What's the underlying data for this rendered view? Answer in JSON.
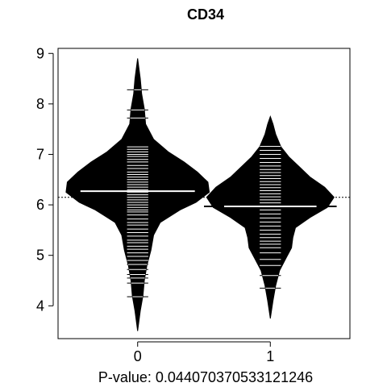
{
  "chart_data": {
    "type": "beanplot",
    "title": "CD34",
    "xlabel": "P-value: 0.044070370533121246",
    "ylabel": "",
    "categories": [
      "0",
      "1"
    ],
    "yticks": [
      4,
      5,
      6,
      7,
      8,
      9
    ],
    "ylim": [
      3.35,
      9.1
    ],
    "xlim": [
      -0.6,
      1.6
    ],
    "overall_mean": 6.15,
    "grid": false,
    "legend": "none",
    "colors": {
      "bean_fill": "#000000",
      "beanline": "#ffffff",
      "mean_line": "#000000"
    },
    "beans": [
      {
        "category": "0",
        "mean": 6.27,
        "density": [
          [
            3.5,
            0.0
          ],
          [
            3.9,
            0.02
          ],
          [
            4.2,
            0.04
          ],
          [
            4.5,
            0.05
          ],
          [
            4.8,
            0.07
          ],
          [
            5.1,
            0.1
          ],
          [
            5.4,
            0.12
          ],
          [
            5.65,
            0.17
          ],
          [
            5.9,
            0.32
          ],
          [
            6.05,
            0.44
          ],
          [
            6.25,
            0.54
          ],
          [
            6.45,
            0.53
          ],
          [
            6.65,
            0.45
          ],
          [
            6.85,
            0.35
          ],
          [
            7.05,
            0.23
          ],
          [
            7.3,
            0.12
          ],
          [
            7.6,
            0.06
          ],
          [
            7.9,
            0.05
          ],
          [
            8.2,
            0.03
          ],
          [
            8.5,
            0.02
          ],
          [
            8.9,
            0.0
          ]
        ],
        "points": [
          4.18,
          4.45,
          4.55,
          4.62,
          4.72,
          4.82,
          4.9,
          4.98,
          5.05,
          5.12,
          5.18,
          5.25,
          5.3,
          5.38,
          5.45,
          5.52,
          5.6,
          5.65,
          5.72,
          5.8,
          5.86,
          5.9,
          5.95,
          6.0,
          6.05,
          6.1,
          6.15,
          6.2,
          6.25,
          6.3,
          6.35,
          6.4,
          6.45,
          6.5,
          6.55,
          6.6,
          6.65,
          6.72,
          6.78,
          6.85,
          6.9,
          6.96,
          7.0,
          7.05,
          7.1,
          7.15,
          7.72,
          7.88,
          8.28
        ]
      },
      {
        "category": "1",
        "mean": 5.97,
        "density": [
          [
            3.75,
            0.0
          ],
          [
            4.1,
            0.02
          ],
          [
            4.4,
            0.04
          ],
          [
            4.7,
            0.07
          ],
          [
            4.95,
            0.12
          ],
          [
            5.15,
            0.16
          ],
          [
            5.35,
            0.17
          ],
          [
            5.55,
            0.19
          ],
          [
            5.75,
            0.3
          ],
          [
            5.95,
            0.43
          ],
          [
            6.15,
            0.48
          ],
          [
            6.35,
            0.41
          ],
          [
            6.55,
            0.3
          ],
          [
            6.75,
            0.22
          ],
          [
            6.95,
            0.14
          ],
          [
            7.15,
            0.08
          ],
          [
            7.4,
            0.04
          ],
          [
            7.6,
            0.02
          ],
          [
            7.75,
            0.0
          ]
        ],
        "points": [
          4.35,
          4.6,
          4.8,
          4.92,
          5.05,
          5.15,
          5.22,
          5.28,
          5.35,
          5.42,
          5.5,
          5.58,
          5.66,
          5.74,
          5.82,
          5.9,
          5.97,
          6.04,
          6.1,
          6.16,
          6.22,
          6.28,
          6.34,
          6.4,
          6.46,
          6.52,
          6.58,
          6.64,
          6.7,
          6.77,
          6.84,
          6.92,
          7.0,
          7.08,
          7.16
        ]
      }
    ]
  }
}
